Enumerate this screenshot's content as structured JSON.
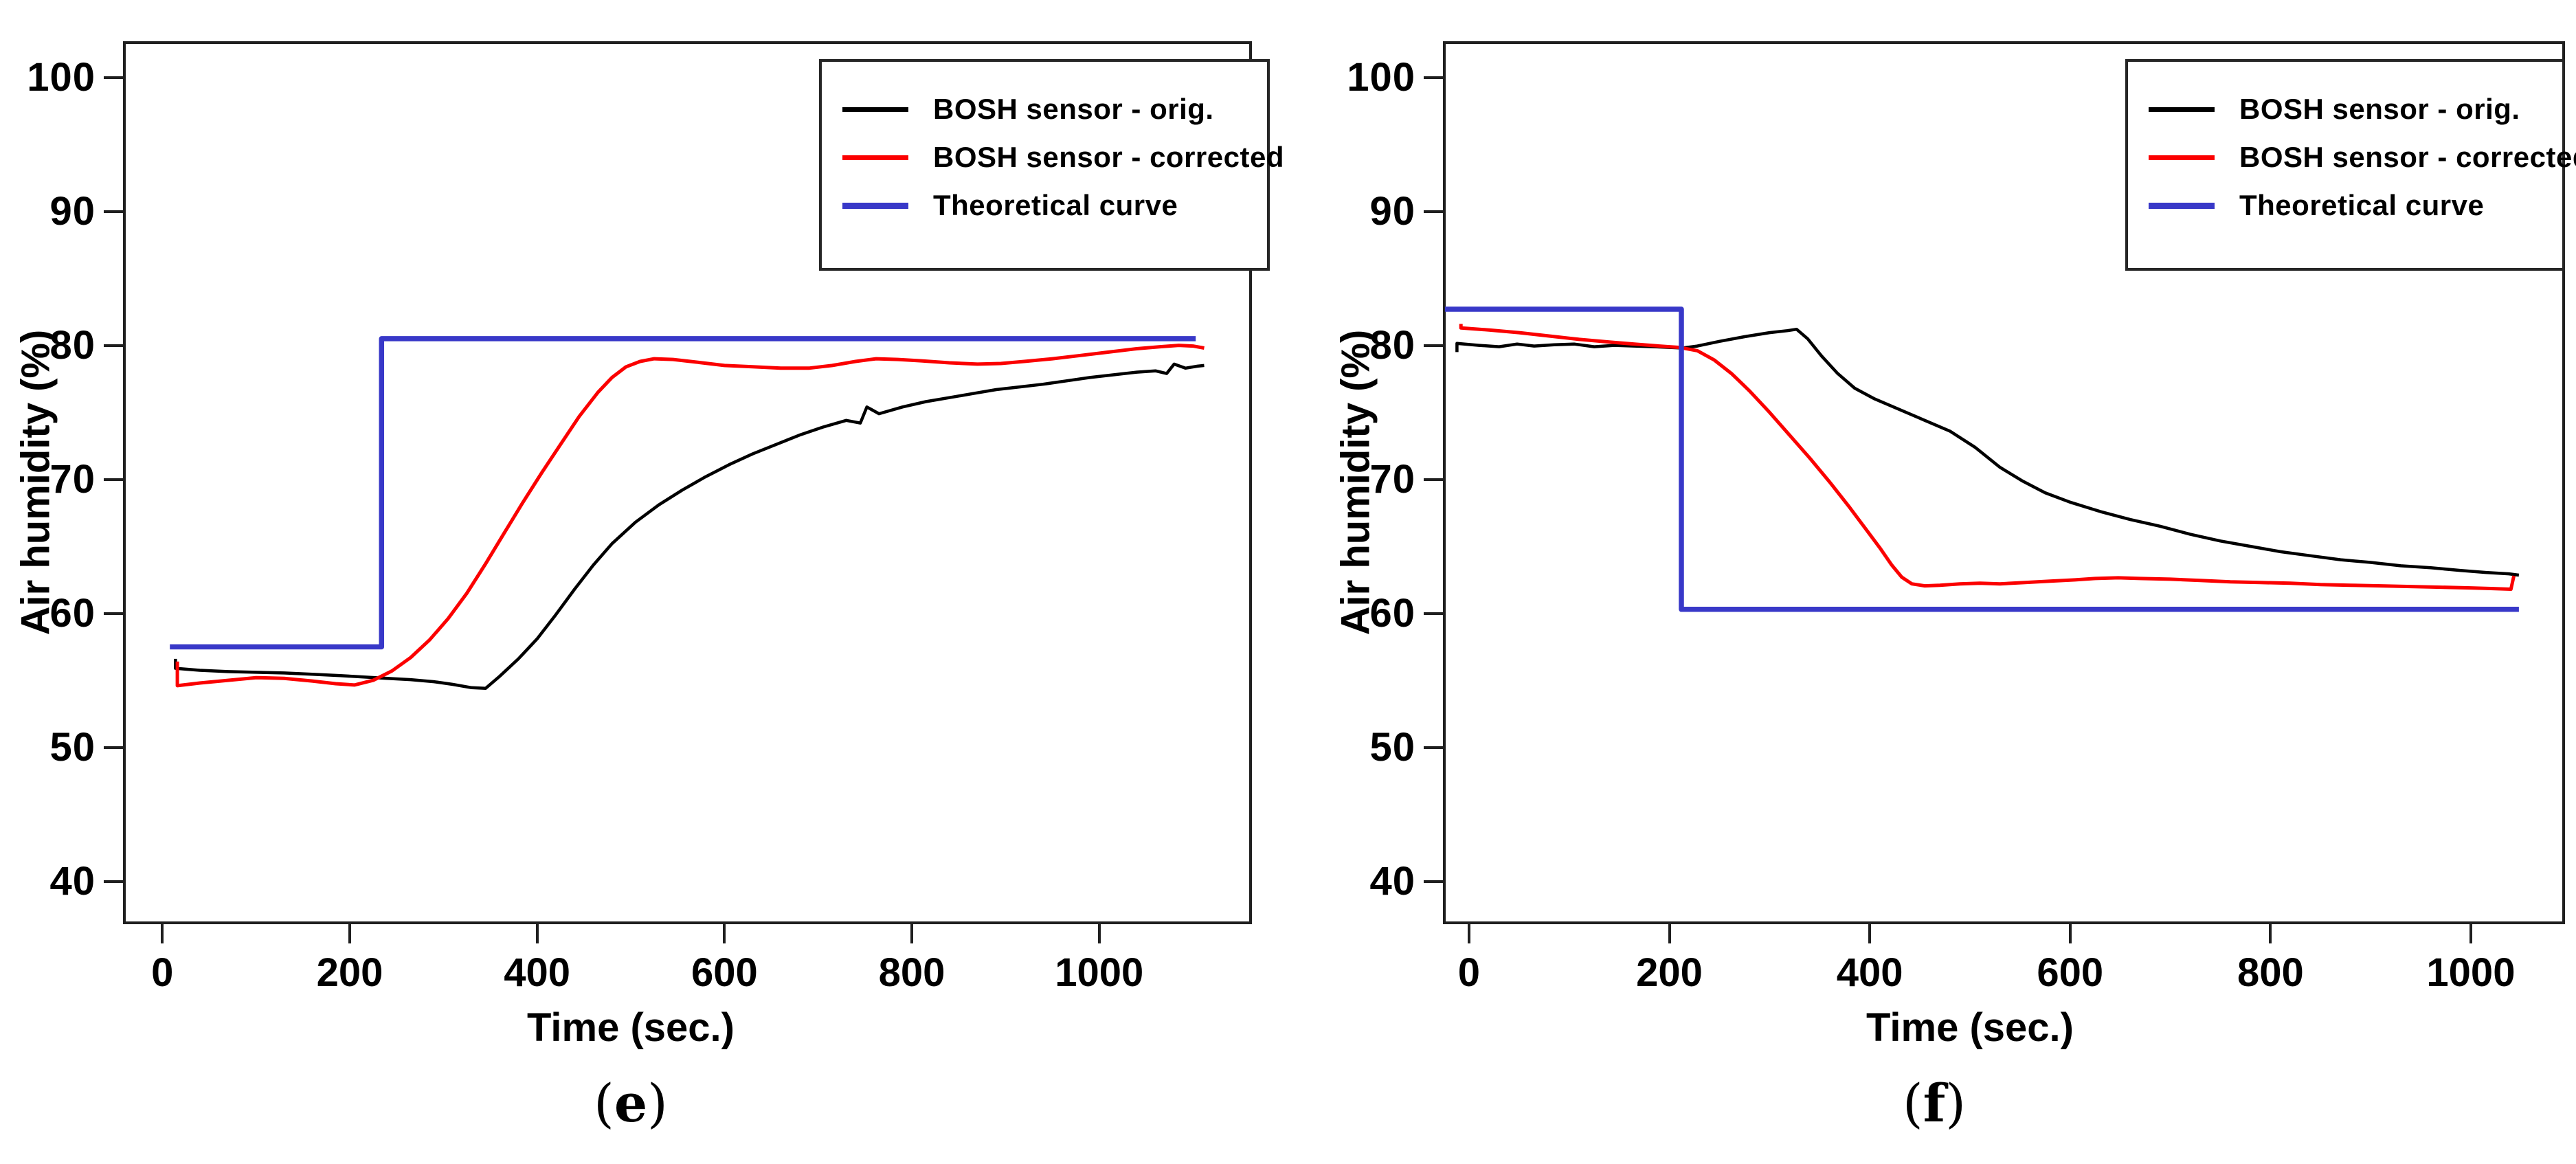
{
  "figure": {
    "background": "#ffffff",
    "captions": [
      {
        "open": "(",
        "letter": "e",
        "close": ")"
      },
      {
        "open": "(",
        "letter": "f",
        "close": ")"
      }
    ]
  },
  "legend": {
    "position": "top-right-inside",
    "entries": [
      {
        "id": "bosh-orig",
        "label": "BOSH sensor - orig.",
        "color": "#000000",
        "line_width": 7
      },
      {
        "id": "bosh-corrected",
        "label": "BOSH sensor - corrected",
        "color": "#fb0000",
        "line_width": 7
      },
      {
        "id": "theoretical",
        "label": "Theoretical curve",
        "color": "#3838c8",
        "line_width": 9
      }
    ]
  },
  "chart_data": [
    {
      "type": "line",
      "panel": "e",
      "xlabel": "Time (sec.)",
      "ylabel": "Air humidity (%)",
      "xlim": [
        -42,
        1163
      ],
      "ylim": [
        36.8,
        102.7
      ],
      "x_ticks": [
        0,
        200,
        400,
        600,
        800,
        1000
      ],
      "y_ticks": [
        100,
        90,
        80,
        70,
        60,
        50,
        40
      ],
      "grid": false,
      "series": [
        {
          "name": "BOSH sensor - orig.",
          "color": "#000000",
          "width": 4.5,
          "points": [
            [
              14,
              56.6
            ],
            [
              14,
              55.9
            ],
            [
              40,
              55.75
            ],
            [
              70,
              55.65
            ],
            [
              100,
              55.6
            ],
            [
              130,
              55.55
            ],
            [
              160,
              55.45
            ],
            [
              190,
              55.35
            ],
            [
              215,
              55.25
            ],
            [
              240,
              55.15
            ],
            [
              265,
              55.05
            ],
            [
              290,
              54.9
            ],
            [
              310,
              54.7
            ],
            [
              330,
              54.45
            ],
            [
              345,
              54.4
            ],
            [
              360,
              55.3
            ],
            [
              380,
              56.6
            ],
            [
              400,
              58.1
            ],
            [
              420,
              59.9
            ],
            [
              440,
              61.8
            ],
            [
              460,
              63.6
            ],
            [
              480,
              65.2
            ],
            [
              505,
              66.8
            ],
            [
              530,
              68.1
            ],
            [
              555,
              69.2
            ],
            [
              580,
              70.2
            ],
            [
              605,
              71.1
            ],
            [
              630,
              71.9
            ],
            [
              655,
              72.6
            ],
            [
              680,
              73.3
            ],
            [
              705,
              73.9
            ],
            [
              730,
              74.4
            ],
            [
              745,
              74.2
            ],
            [
              752,
              75.4
            ],
            [
              765,
              74.9
            ],
            [
              790,
              75.4
            ],
            [
              815,
              75.8
            ],
            [
              840,
              76.1
            ],
            [
              865,
              76.4
            ],
            [
              890,
              76.7
            ],
            [
              915,
              76.9
            ],
            [
              940,
              77.1
            ],
            [
              965,
              77.35
            ],
            [
              990,
              77.6
            ],
            [
              1015,
              77.8
            ],
            [
              1040,
              78.0
            ],
            [
              1060,
              78.1
            ],
            [
              1072,
              77.9
            ],
            [
              1080,
              78.6
            ],
            [
              1092,
              78.3
            ],
            [
              1105,
              78.45
            ],
            [
              1112,
              78.5
            ]
          ]
        },
        {
          "name": "BOSH sensor - corrected",
          "color": "#fb0000",
          "width": 5,
          "points": [
            [
              16,
              56.4
            ],
            [
              16,
              54.6
            ],
            [
              40,
              54.8
            ],
            [
              70,
              55.0
            ],
            [
              100,
              55.2
            ],
            [
              130,
              55.15
            ],
            [
              160,
              54.95
            ],
            [
              185,
              54.75
            ],
            [
              205,
              54.65
            ],
            [
              225,
              55.0
            ],
            [
              245,
              55.7
            ],
            [
              265,
              56.7
            ],
            [
              285,
              58.0
            ],
            [
              305,
              59.6
            ],
            [
              325,
              61.5
            ],
            [
              345,
              63.7
            ],
            [
              365,
              66.0
            ],
            [
              385,
              68.3
            ],
            [
              405,
              70.5
            ],
            [
              425,
              72.6
            ],
            [
              445,
              74.7
            ],
            [
              465,
              76.5
            ],
            [
              480,
              77.6
            ],
            [
              495,
              78.4
            ],
            [
              510,
              78.8
            ],
            [
              525,
              79.0
            ],
            [
              545,
              78.95
            ],
            [
              570,
              78.75
            ],
            [
              600,
              78.5
            ],
            [
              630,
              78.4
            ],
            [
              660,
              78.3
            ],
            [
              690,
              78.3
            ],
            [
              715,
              78.5
            ],
            [
              740,
              78.8
            ],
            [
              762,
              79.0
            ],
            [
              785,
              78.95
            ],
            [
              810,
              78.85
            ],
            [
              840,
              78.7
            ],
            [
              870,
              78.6
            ],
            [
              895,
              78.65
            ],
            [
              920,
              78.8
            ],
            [
              950,
              79.0
            ],
            [
              980,
              79.25
            ],
            [
              1010,
              79.5
            ],
            [
              1040,
              79.75
            ],
            [
              1065,
              79.9
            ],
            [
              1085,
              80.0
            ],
            [
              1100,
              79.95
            ],
            [
              1112,
              79.8
            ]
          ]
        },
        {
          "name": "Theoretical curve",
          "color": "#3838c8",
          "width": 7.5,
          "points": [
            [
              8,
              57.5
            ],
            [
              234,
              57.5
            ],
            [
              234,
              80.5
            ],
            [
              1103,
              80.5
            ]
          ]
        }
      ]
    },
    {
      "type": "line",
      "panel": "f",
      "xlabel": "Time (sec.)",
      "ylabel": "Air humidity (%)",
      "xlim": [
        -26,
        1094
      ],
      "ylim": [
        36.8,
        102.7
      ],
      "x_ticks": [
        0,
        200,
        400,
        600,
        800,
        1000
      ],
      "y_ticks": [
        100,
        90,
        80,
        70,
        60,
        50,
        40
      ],
      "grid": false,
      "series": [
        {
          "name": "BOSH sensor - orig.",
          "color": "#000000",
          "width": 4.5,
          "points": [
            [
              -12,
              79.5
            ],
            [
              -12,
              80.15
            ],
            [
              10,
              80.0
            ],
            [
              30,
              79.9
            ],
            [
              48,
              80.1
            ],
            [
              65,
              79.95
            ],
            [
              85,
              80.05
            ],
            [
              105,
              80.1
            ],
            [
              125,
              79.9
            ],
            [
              145,
              80.0
            ],
            [
              165,
              79.95
            ],
            [
              185,
              79.9
            ],
            [
              200,
              79.85
            ],
            [
              213,
              79.8
            ],
            [
              228,
              79.95
            ],
            [
              250,
              80.3
            ],
            [
              275,
              80.65
            ],
            [
              300,
              80.95
            ],
            [
              318,
              81.1
            ],
            [
              327,
              81.2
            ],
            [
              338,
              80.5
            ],
            [
              352,
              79.2
            ],
            [
              368,
              77.9
            ],
            [
              385,
              76.8
            ],
            [
              405,
              76.0
            ],
            [
              430,
              75.2
            ],
            [
              455,
              74.4
            ],
            [
              480,
              73.6
            ],
            [
              505,
              72.4
            ],
            [
              530,
              70.9
            ],
            [
              552,
              69.9
            ],
            [
              575,
              69.0
            ],
            [
              600,
              68.3
            ],
            [
              630,
              67.6
            ],
            [
              660,
              67.0
            ],
            [
              690,
              66.5
            ],
            [
              720,
              65.9
            ],
            [
              750,
              65.4
            ],
            [
              780,
              65.0
            ],
            [
              810,
              64.6
            ],
            [
              840,
              64.3
            ],
            [
              870,
              64.0
            ],
            [
              900,
              63.8
            ],
            [
              930,
              63.55
            ],
            [
              960,
              63.4
            ],
            [
              990,
              63.2
            ],
            [
              1015,
              63.05
            ],
            [
              1038,
              62.95
            ],
            [
              1048,
              62.85
            ]
          ]
        },
        {
          "name": "BOSH sensor - corrected",
          "color": "#fb0000",
          "width": 5,
          "points": [
            [
              -8,
              81.6
            ],
            [
              -8,
              81.3
            ],
            [
              20,
              81.15
            ],
            [
              50,
              80.95
            ],
            [
              80,
              80.7
            ],
            [
              110,
              80.45
            ],
            [
              140,
              80.25
            ],
            [
              165,
              80.1
            ],
            [
              190,
              79.95
            ],
            [
              210,
              79.85
            ],
            [
              228,
              79.6
            ],
            [
              245,
              78.9
            ],
            [
              262,
              77.9
            ],
            [
              280,
              76.6
            ],
            [
              300,
              75.0
            ],
            [
              320,
              73.3
            ],
            [
              340,
              71.6
            ],
            [
              360,
              69.8
            ],
            [
              380,
              67.9
            ],
            [
              395,
              66.4
            ],
            [
              410,
              64.9
            ],
            [
              422,
              63.6
            ],
            [
              432,
              62.7
            ],
            [
              442,
              62.2
            ],
            [
              455,
              62.05
            ],
            [
              470,
              62.1
            ],
            [
              490,
              62.2
            ],
            [
              510,
              62.25
            ],
            [
              530,
              62.2
            ],
            [
              555,
              62.3
            ],
            [
              580,
              62.4
            ],
            [
              605,
              62.5
            ],
            [
              625,
              62.6
            ],
            [
              648,
              62.65
            ],
            [
              670,
              62.6
            ],
            [
              700,
              62.55
            ],
            [
              730,
              62.45
            ],
            [
              760,
              62.35
            ],
            [
              790,
              62.3
            ],
            [
              820,
              62.25
            ],
            [
              850,
              62.15
            ],
            [
              880,
              62.1
            ],
            [
              910,
              62.05
            ],
            [
              940,
              62.0
            ],
            [
              970,
              61.95
            ],
            [
              1000,
              61.9
            ],
            [
              1020,
              61.85
            ],
            [
              1040,
              61.8
            ],
            [
              1043,
              62.8
            ]
          ]
        },
        {
          "name": "Theoretical curve",
          "color": "#3838c8",
          "width": 7.5,
          "points": [
            [
              -24,
              82.7
            ],
            [
              212,
              82.7
            ],
            [
              212,
              60.3
            ],
            [
              1048,
              60.3
            ]
          ]
        }
      ]
    }
  ]
}
